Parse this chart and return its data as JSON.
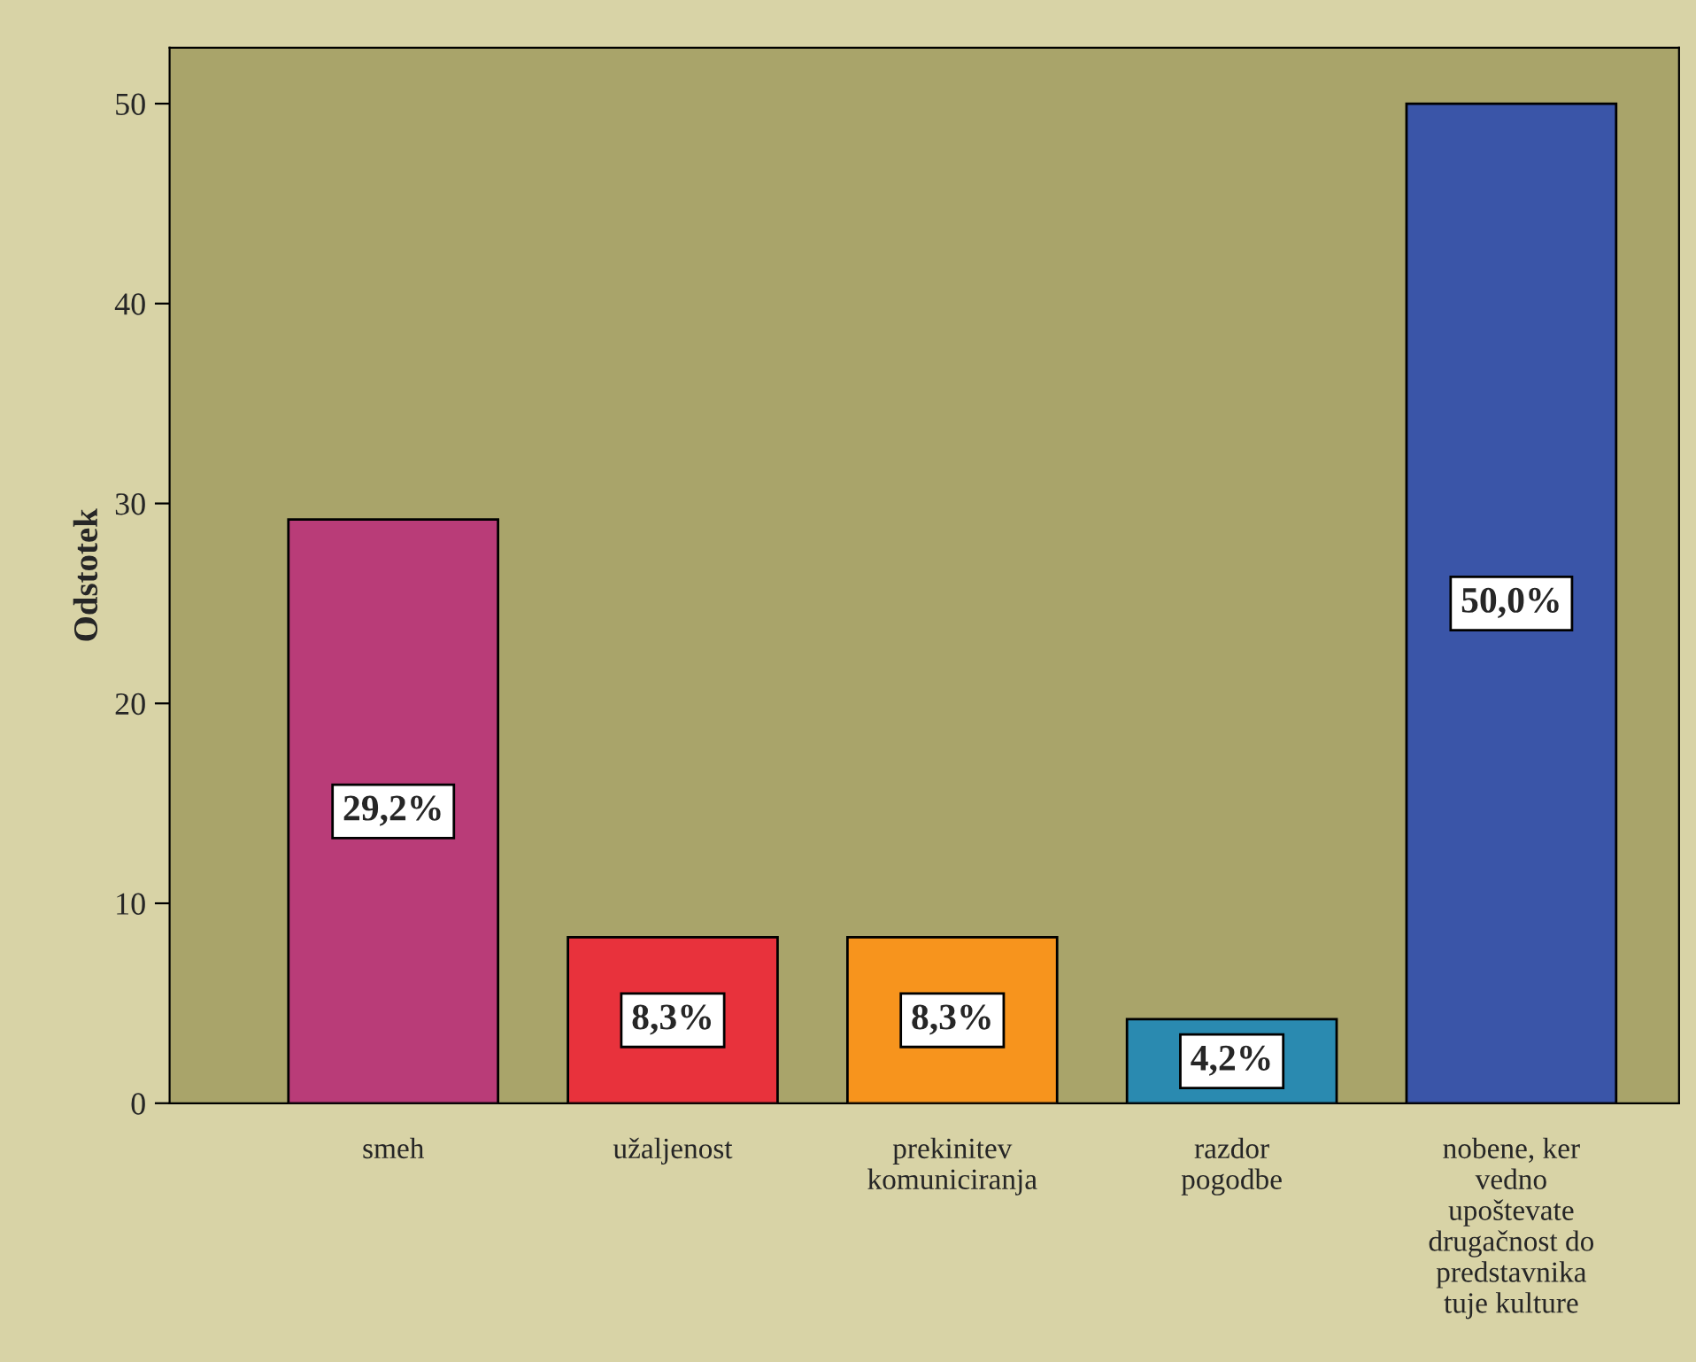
{
  "chart_data": {
    "type": "bar",
    "ylabel": "Odstotek",
    "categories": [
      "smeh",
      "užaljenost",
      "prekinitev komuniciranja",
      "razdor pogodbe",
      "nobene, ker vedno upoštevate drugačnost do predstavnika tuje kulture"
    ],
    "values": [
      29.2,
      8.3,
      8.3,
      4.2,
      50.0
    ],
    "colors": [
      "#b93c78",
      "#e8323c",
      "#f7941d",
      "#2a8ab0",
      "#3a55a8"
    ],
    "value_labels": [
      "29,2%",
      "8,3%",
      "8,3%",
      "4,2%",
      "50,0%"
    ],
    "ylim": [
      0,
      52.8
    ],
    "yticks": [
      0,
      10,
      20,
      30,
      40,
      50
    ],
    "grid": false,
    "legend": false
  }
}
